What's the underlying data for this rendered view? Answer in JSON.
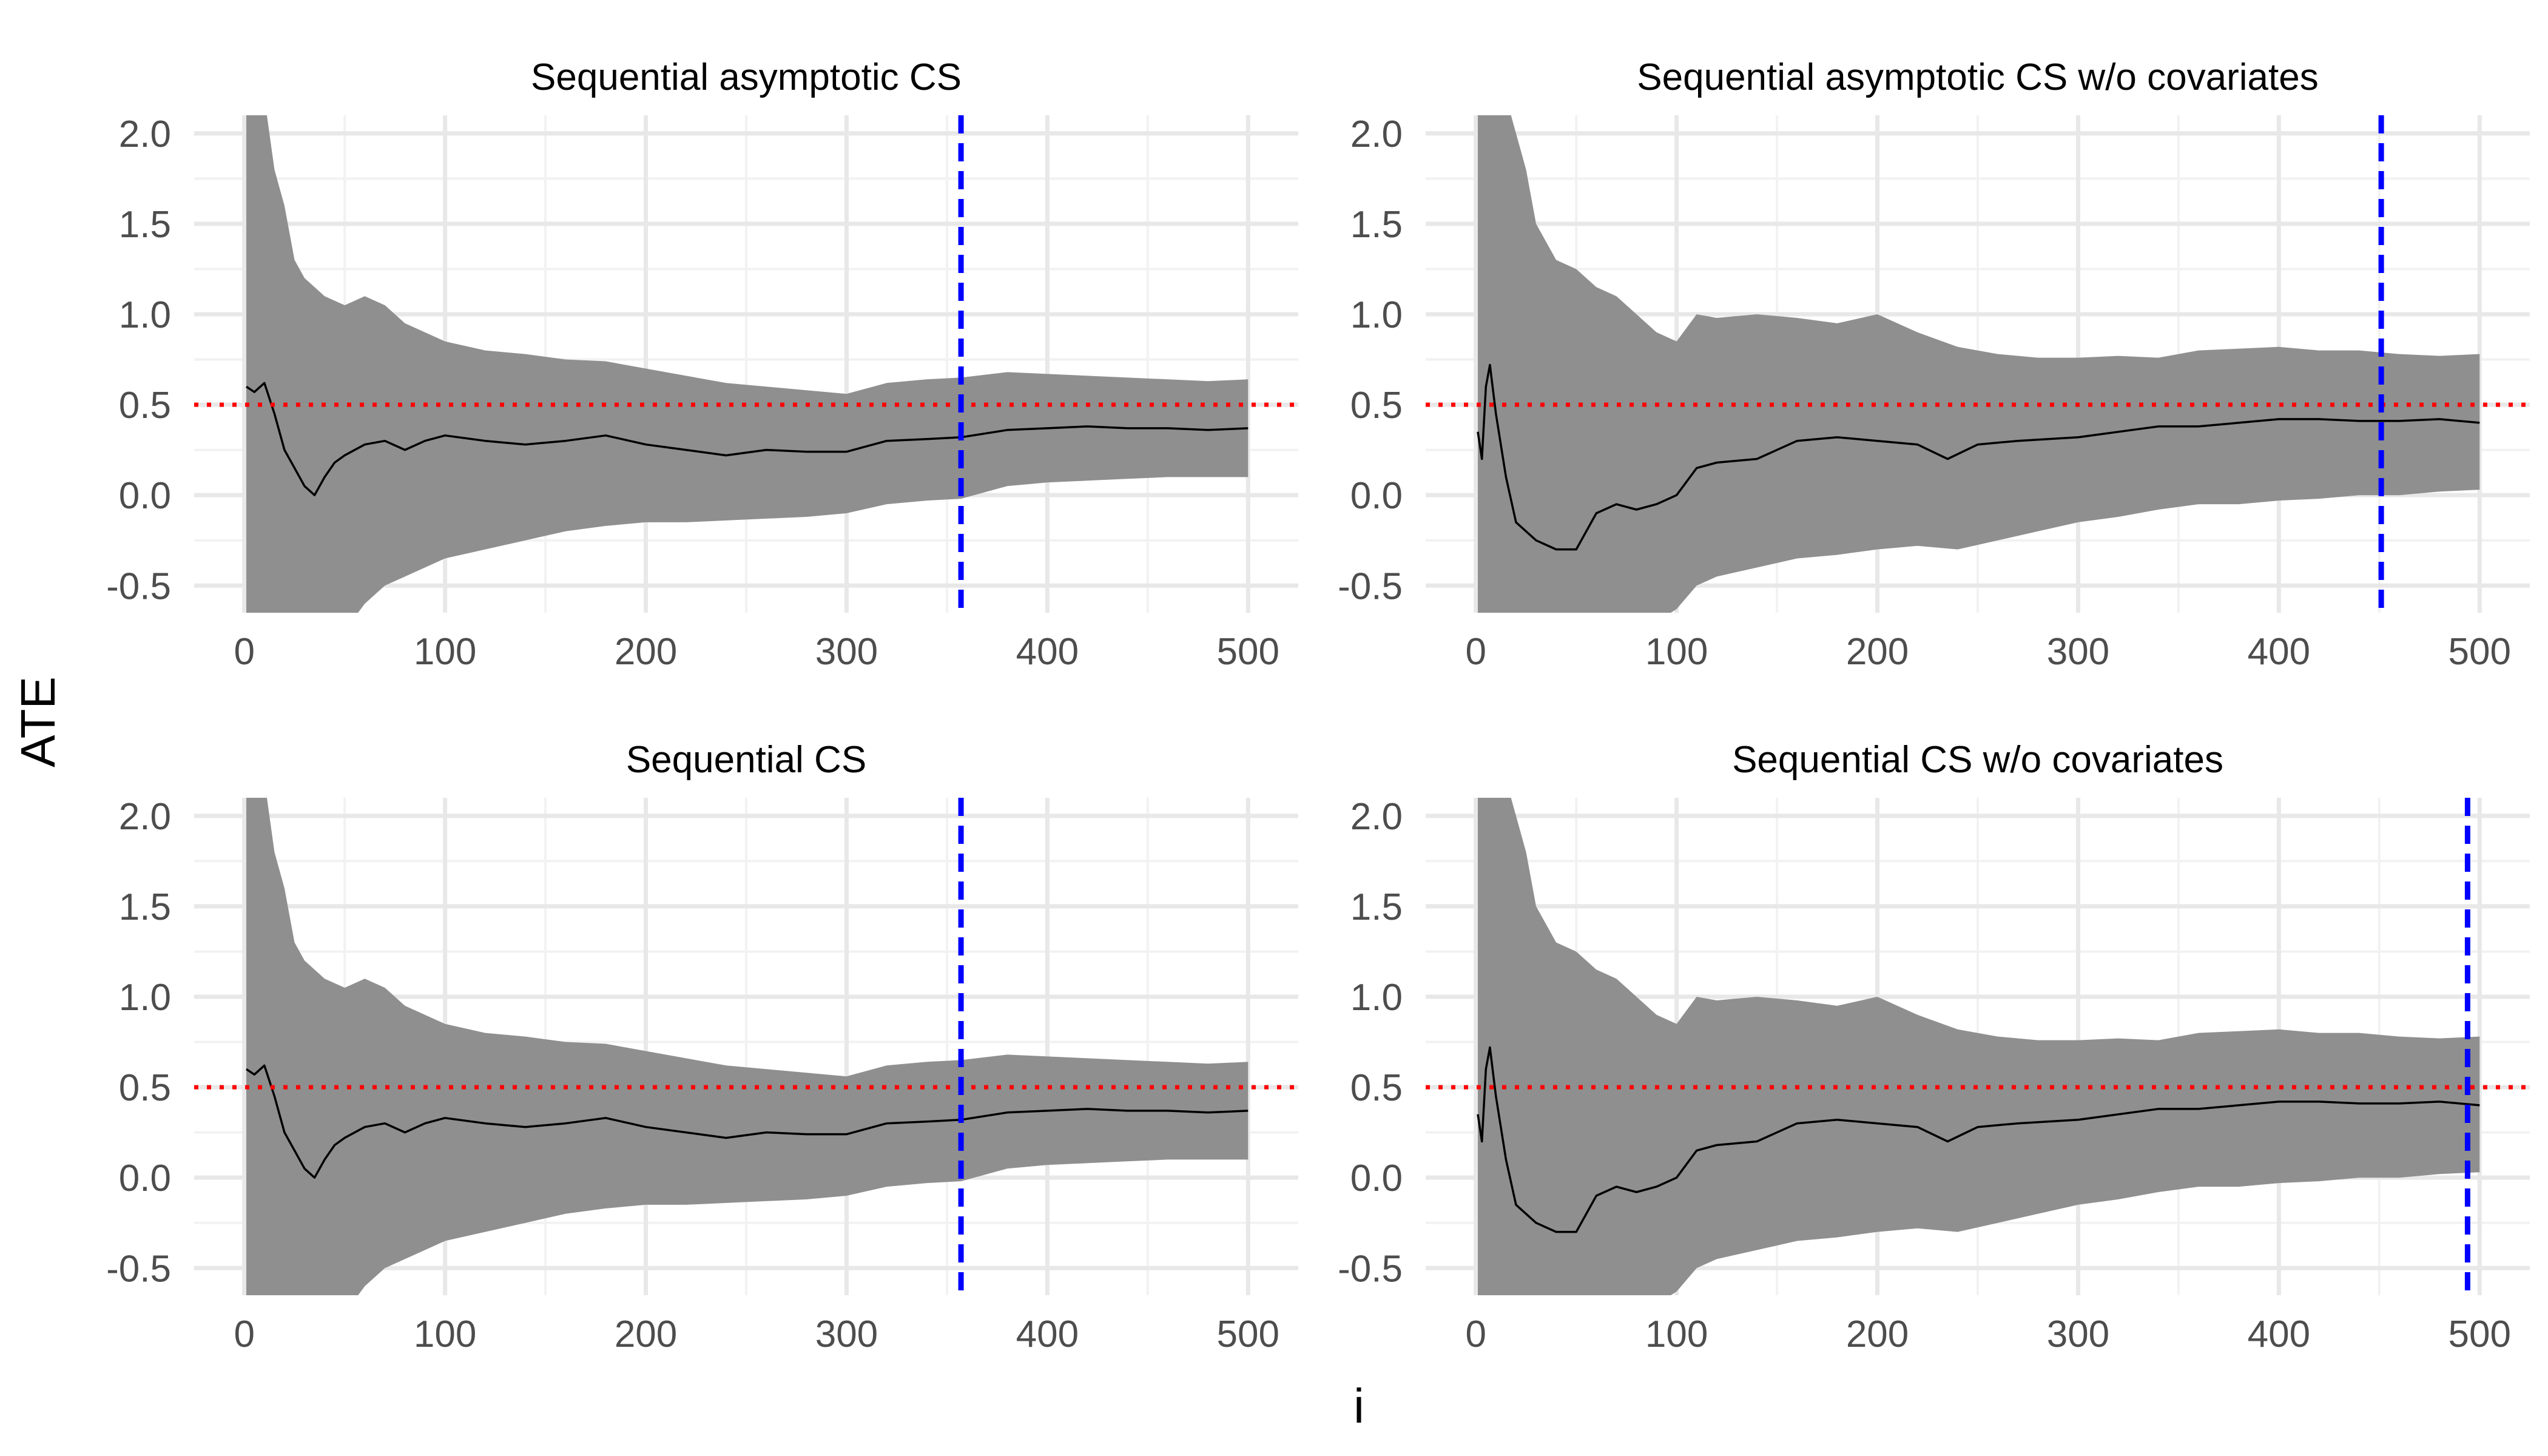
{
  "figure": {
    "ylabel": "ATE",
    "xlabel": "i",
    "colors": {
      "band": "#8f8f8f",
      "estimate": "#000000",
      "true_effect": "#ff0000",
      "stopping_time": "#0000ff",
      "grid_major": "#e8e8e8",
      "grid_minor": "#f2f2f2",
      "tick_text": "#4d4d4d",
      "title_text": "#000000"
    }
  },
  "chart_data": [
    {
      "type": "area",
      "title": "Sequential asymptotic CS",
      "xlim": [
        -25,
        525
      ],
      "ylim": [
        -0.65,
        2.1
      ],
      "xticks": [
        0,
        100,
        200,
        300,
        400,
        500
      ],
      "xtick_labels": [
        "0",
        "100",
        "200",
        "300",
        "400",
        "500"
      ],
      "yticks": [
        -0.5,
        0.0,
        0.5,
        1.0,
        1.5,
        2.0
      ],
      "ytick_labels": [
        "-0.5",
        "0.0",
        "0.5",
        "1.0",
        "1.5",
        "2.0"
      ],
      "true_effect": 0.5,
      "stopping_time": 357,
      "band": {
        "x": [
          1,
          5,
          10,
          15,
          20,
          25,
          30,
          40,
          50,
          60,
          70,
          80,
          100,
          120,
          140,
          160,
          180,
          200,
          220,
          240,
          260,
          280,
          300,
          320,
          340,
          357,
          380,
          400,
          420,
          440,
          460,
          480,
          500
        ],
        "upper": [
          2.6,
          2.4,
          2.2,
          1.8,
          1.6,
          1.3,
          1.2,
          1.1,
          1.05,
          1.1,
          1.05,
          0.95,
          0.85,
          0.8,
          0.78,
          0.75,
          0.74,
          0.7,
          0.66,
          0.62,
          0.6,
          0.58,
          0.56,
          0.62,
          0.64,
          0.65,
          0.68,
          0.67,
          0.66,
          0.65,
          0.64,
          0.63,
          0.64
        ],
        "lower": [
          -1.5,
          -1.3,
          -1.1,
          -1.0,
          -0.9,
          -0.9,
          -0.85,
          -0.8,
          -0.75,
          -0.6,
          -0.5,
          -0.45,
          -0.35,
          -0.3,
          -0.25,
          -0.2,
          -0.17,
          -0.15,
          -0.15,
          -0.14,
          -0.13,
          -0.12,
          -0.1,
          -0.05,
          -0.03,
          -0.02,
          0.05,
          0.07,
          0.08,
          0.09,
          0.1,
          0.1,
          0.1
        ]
      },
      "estimate": {
        "x": [
          1,
          5,
          10,
          15,
          20,
          25,
          30,
          35,
          40,
          45,
          50,
          60,
          70,
          80,
          90,
          100,
          120,
          140,
          160,
          180,
          200,
          220,
          240,
          260,
          280,
          300,
          320,
          340,
          357,
          380,
          400,
          420,
          440,
          460,
          480,
          500
        ],
        "y": [
          0.6,
          0.57,
          0.62,
          0.45,
          0.25,
          0.15,
          0.05,
          0.0,
          0.1,
          0.18,
          0.22,
          0.28,
          0.3,
          0.25,
          0.3,
          0.33,
          0.3,
          0.28,
          0.3,
          0.33,
          0.28,
          0.25,
          0.22,
          0.25,
          0.24,
          0.24,
          0.3,
          0.31,
          0.32,
          0.36,
          0.37,
          0.38,
          0.37,
          0.37,
          0.36,
          0.37
        ]
      }
    },
    {
      "type": "area",
      "title": "Sequential asymptotic CS w/o covariates",
      "xlim": [
        -25,
        525
      ],
      "ylim": [
        -0.65,
        2.1
      ],
      "xticks": [
        0,
        100,
        200,
        300,
        400,
        500
      ],
      "xtick_labels": [
        "0",
        "100",
        "200",
        "300",
        "400",
        "500"
      ],
      "yticks": [
        -0.5,
        0.0,
        0.5,
        1.0,
        1.5,
        2.0
      ],
      "ytick_labels": [
        "-0.5",
        "0.0",
        "0.5",
        "1.0",
        "1.5",
        "2.0"
      ],
      "true_effect": 0.5,
      "stopping_time": 451,
      "band": {
        "x": [
          1,
          5,
          10,
          15,
          20,
          25,
          30,
          40,
          50,
          60,
          70,
          80,
          90,
          100,
          110,
          120,
          140,
          160,
          180,
          200,
          220,
          240,
          260,
          280,
          300,
          320,
          340,
          360,
          380,
          400,
          420,
          440,
          460,
          480,
          500
        ],
        "upper": [
          2.8,
          2.6,
          2.4,
          2.2,
          2.0,
          1.8,
          1.5,
          1.3,
          1.25,
          1.15,
          1.1,
          1.0,
          0.9,
          0.85,
          1.0,
          0.98,
          1.0,
          0.98,
          0.95,
          1.0,
          0.9,
          0.82,
          0.78,
          0.76,
          0.76,
          0.77,
          0.76,
          0.8,
          0.81,
          0.82,
          0.8,
          0.8,
          0.78,
          0.77,
          0.78
        ],
        "lower": [
          -1.6,
          -1.5,
          -1.4,
          -1.3,
          -1.2,
          -1.1,
          -1.05,
          -1.0,
          -0.95,
          -0.9,
          -0.8,
          -0.75,
          -0.7,
          -0.63,
          -0.5,
          -0.45,
          -0.4,
          -0.35,
          -0.33,
          -0.3,
          -0.28,
          -0.3,
          -0.25,
          -0.2,
          -0.15,
          -0.12,
          -0.08,
          -0.05,
          -0.05,
          -0.03,
          -0.02,
          0.0,
          0.0,
          0.02,
          0.03
        ]
      },
      "estimate": {
        "x": [
          1,
          3,
          5,
          7,
          10,
          15,
          20,
          30,
          40,
          50,
          60,
          70,
          80,
          90,
          100,
          110,
          120,
          140,
          160,
          180,
          200,
          220,
          235,
          250,
          270,
          300,
          320,
          340,
          360,
          380,
          400,
          420,
          440,
          460,
          480,
          500
        ],
        "y": [
          0.35,
          0.2,
          0.6,
          0.72,
          0.45,
          0.1,
          -0.15,
          -0.25,
          -0.3,
          -0.3,
          -0.1,
          -0.05,
          -0.08,
          -0.05,
          0.0,
          0.15,
          0.18,
          0.2,
          0.3,
          0.32,
          0.3,
          0.28,
          0.2,
          0.28,
          0.3,
          0.32,
          0.35,
          0.38,
          0.38,
          0.4,
          0.42,
          0.42,
          0.41,
          0.41,
          0.42,
          0.4
        ]
      }
    },
    {
      "type": "area",
      "title": "Sequential CS",
      "xlim": [
        -25,
        525
      ],
      "ylim": [
        -0.65,
        2.1
      ],
      "xticks": [
        0,
        100,
        200,
        300,
        400,
        500
      ],
      "xtick_labels": [
        "0",
        "100",
        "200",
        "300",
        "400",
        "500"
      ],
      "yticks": [
        -0.5,
        0.0,
        0.5,
        1.0,
        1.5,
        2.0
      ],
      "ytick_labels": [
        "-0.5",
        "0.0",
        "0.5",
        "1.0",
        "1.5",
        "2.0"
      ],
      "true_effect": 0.5,
      "stopping_time": 357,
      "band": {
        "x": [
          1,
          5,
          10,
          15,
          20,
          25,
          30,
          40,
          50,
          60,
          70,
          80,
          100,
          120,
          140,
          160,
          180,
          200,
          220,
          240,
          260,
          280,
          300,
          320,
          340,
          357,
          380,
          400,
          420,
          440,
          460,
          480,
          500
        ],
        "upper": [
          2.6,
          2.4,
          2.2,
          1.8,
          1.6,
          1.3,
          1.2,
          1.1,
          1.05,
          1.1,
          1.05,
          0.95,
          0.85,
          0.8,
          0.78,
          0.75,
          0.74,
          0.7,
          0.66,
          0.62,
          0.6,
          0.58,
          0.56,
          0.62,
          0.64,
          0.65,
          0.68,
          0.67,
          0.66,
          0.65,
          0.64,
          0.63,
          0.64
        ],
        "lower": [
          -1.5,
          -1.3,
          -1.1,
          -1.0,
          -0.9,
          -0.9,
          -0.85,
          -0.8,
          -0.75,
          -0.6,
          -0.5,
          -0.45,
          -0.35,
          -0.3,
          -0.25,
          -0.2,
          -0.17,
          -0.15,
          -0.15,
          -0.14,
          -0.13,
          -0.12,
          -0.1,
          -0.05,
          -0.03,
          -0.02,
          0.05,
          0.07,
          0.08,
          0.09,
          0.1,
          0.1,
          0.1
        ]
      },
      "estimate": {
        "x": [
          1,
          5,
          10,
          15,
          20,
          25,
          30,
          35,
          40,
          45,
          50,
          60,
          70,
          80,
          90,
          100,
          120,
          140,
          160,
          180,
          200,
          220,
          240,
          260,
          280,
          300,
          320,
          340,
          357,
          380,
          400,
          420,
          440,
          460,
          480,
          500
        ],
        "y": [
          0.6,
          0.57,
          0.62,
          0.45,
          0.25,
          0.15,
          0.05,
          0.0,
          0.1,
          0.18,
          0.22,
          0.28,
          0.3,
          0.25,
          0.3,
          0.33,
          0.3,
          0.28,
          0.3,
          0.33,
          0.28,
          0.25,
          0.22,
          0.25,
          0.24,
          0.24,
          0.3,
          0.31,
          0.32,
          0.36,
          0.37,
          0.38,
          0.37,
          0.37,
          0.36,
          0.37
        ]
      }
    },
    {
      "type": "area",
      "title": "Sequential CS w/o covariates",
      "xlim": [
        -25,
        525
      ],
      "ylim": [
        -0.65,
        2.1
      ],
      "xticks": [
        0,
        100,
        200,
        300,
        400,
        500
      ],
      "xtick_labels": [
        "0",
        "100",
        "200",
        "300",
        "400",
        "500"
      ],
      "yticks": [
        -0.5,
        0.0,
        0.5,
        1.0,
        1.5,
        2.0
      ],
      "ytick_labels": [
        "-0.5",
        "0.0",
        "0.5",
        "1.0",
        "1.5",
        "2.0"
      ],
      "true_effect": 0.5,
      "stopping_time": 494,
      "band": {
        "x": [
          1,
          5,
          10,
          15,
          20,
          25,
          30,
          40,
          50,
          60,
          70,
          80,
          90,
          100,
          110,
          120,
          140,
          160,
          180,
          200,
          220,
          240,
          260,
          280,
          300,
          320,
          340,
          360,
          380,
          400,
          420,
          440,
          460,
          480,
          500
        ],
        "upper": [
          2.8,
          2.6,
          2.4,
          2.2,
          2.0,
          1.8,
          1.5,
          1.3,
          1.25,
          1.15,
          1.1,
          1.0,
          0.9,
          0.85,
          1.0,
          0.98,
          1.0,
          0.98,
          0.95,
          1.0,
          0.9,
          0.82,
          0.78,
          0.76,
          0.76,
          0.77,
          0.76,
          0.8,
          0.81,
          0.82,
          0.8,
          0.8,
          0.78,
          0.77,
          0.78
        ],
        "lower": [
          -1.6,
          -1.5,
          -1.4,
          -1.3,
          -1.2,
          -1.1,
          -1.05,
          -1.0,
          -0.95,
          -0.9,
          -0.8,
          -0.75,
          -0.7,
          -0.63,
          -0.5,
          -0.45,
          -0.4,
          -0.35,
          -0.33,
          -0.3,
          -0.28,
          -0.3,
          -0.25,
          -0.2,
          -0.15,
          -0.12,
          -0.08,
          -0.05,
          -0.05,
          -0.03,
          -0.02,
          0.0,
          0.0,
          0.02,
          0.03
        ]
      },
      "estimate": {
        "x": [
          1,
          3,
          5,
          7,
          10,
          15,
          20,
          30,
          40,
          50,
          60,
          70,
          80,
          90,
          100,
          110,
          120,
          140,
          160,
          180,
          200,
          220,
          235,
          250,
          270,
          300,
          320,
          340,
          360,
          380,
          400,
          420,
          440,
          460,
          480,
          500
        ],
        "y": [
          0.35,
          0.2,
          0.6,
          0.72,
          0.45,
          0.1,
          -0.15,
          -0.25,
          -0.3,
          -0.3,
          -0.1,
          -0.05,
          -0.08,
          -0.05,
          0.0,
          0.15,
          0.18,
          0.2,
          0.3,
          0.32,
          0.3,
          0.28,
          0.2,
          0.28,
          0.3,
          0.32,
          0.35,
          0.38,
          0.38,
          0.4,
          0.42,
          0.42,
          0.41,
          0.41,
          0.42,
          0.4
        ]
      }
    }
  ]
}
